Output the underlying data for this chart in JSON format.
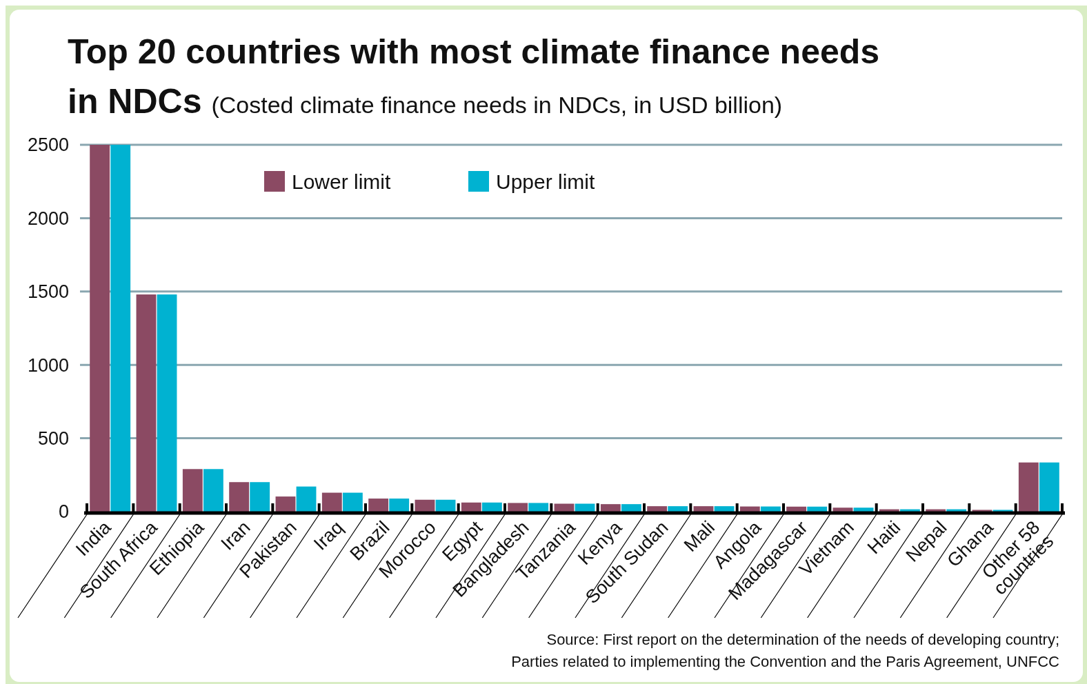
{
  "chart_data": {
    "type": "bar",
    "title": "Top 20 countries with most climate finance needs in NDCs",
    "subtitle": "(Costed climate finance needs in NDCs, in USD billion)",
    "categories": [
      "India",
      "South Africa",
      "Ethiopia",
      "Iran",
      "Pakistan",
      "Iraq",
      "Brazil",
      "Morocco",
      "Egypt",
      "Bangladesh",
      "Tanzania",
      "Kenya",
      "South Sudan",
      "Mali",
      "Angola",
      "Madagascar",
      "Vietnam",
      "Haiti",
      "Nepal",
      "Ghana",
      "Other 58 countries"
    ],
    "series": [
      {
        "name": "Lower limit",
        "color": "#8b4a63",
        "values": [
          2500,
          1480,
          290,
          201,
          103,
          129,
          89,
          81,
          62,
          59,
          54,
          51,
          37,
          37,
          35,
          34,
          27,
          16,
          16,
          12,
          335
        ]
      },
      {
        "name": "Upper limit",
        "color": "#00b2d1",
        "values": [
          2500,
          1480,
          290,
          201,
          171,
          129,
          89,
          81,
          62,
          59,
          54,
          51,
          37,
          37,
          35,
          34,
          27,
          16,
          16,
          12,
          335
        ]
      }
    ],
    "ylim": [
      0,
      2500
    ],
    "yticks": [
      0,
      500,
      1000,
      1500,
      2000,
      2500
    ],
    "grid": "y",
    "legend": "top",
    "annotations": [
      "Source: First report on the determination of the needs of developing country; Parties related to implementing the Convention and the Paris Agreement, UNFCC"
    ]
  }
}
